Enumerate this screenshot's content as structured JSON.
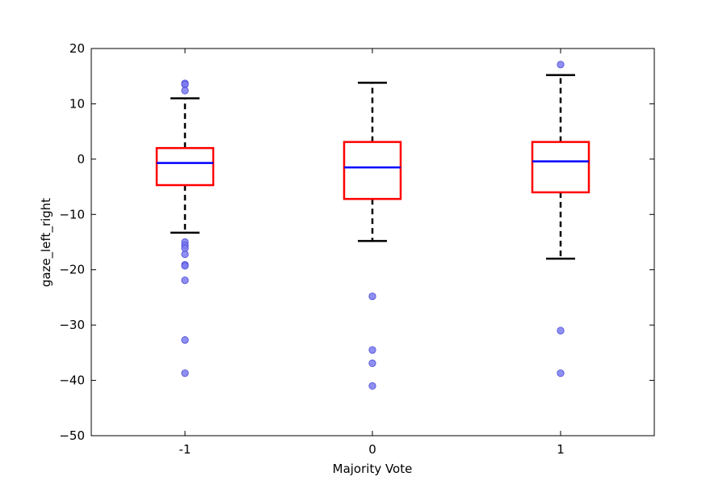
{
  "chart_data": {
    "type": "boxplot",
    "title": "",
    "xlabel": "Majority Vote",
    "ylabel": "gaze_left_right",
    "ylim": [
      -50,
      20
    ],
    "yticks": [
      -50,
      -40,
      -30,
      -20,
      -10,
      0,
      10,
      20
    ],
    "ytick_labels": [
      "−50",
      "−40",
      "−30",
      "−20",
      "−10",
      "0",
      "10",
      "20"
    ],
    "categories": [
      "-1",
      "0",
      "1"
    ],
    "boxes": [
      {
        "category": "-1",
        "whisker_low": -13.3,
        "q1": -4.7,
        "median": -0.7,
        "q3": 2.0,
        "whisker_high": 11.0,
        "outliers": [
          13.7,
          13.5,
          12.4,
          -15.0,
          -15.6,
          -16.1,
          -17.2,
          -19.1,
          -19.3,
          -21.9,
          -32.7,
          -38.7
        ]
      },
      {
        "category": "0",
        "whisker_low": -14.8,
        "q1": -7.2,
        "median": -1.5,
        "q3": 3.1,
        "whisker_high": 13.8,
        "outliers": [
          -24.8,
          -34.5,
          -36.9,
          -41.0
        ]
      },
      {
        "category": "1",
        "whisker_low": -18.0,
        "q1": -6.0,
        "median": -0.4,
        "q3": 3.1,
        "whisker_high": 15.2,
        "outliers": [
          17.1,
          -31.0,
          -38.7
        ]
      }
    ],
    "colors": {
      "box": "#ff0000",
      "median": "#0000ff",
      "whisker": "#000000",
      "outlier": "#7b7bf0",
      "outlier_edge": "#4a4ad6"
    },
    "grid": false
  }
}
